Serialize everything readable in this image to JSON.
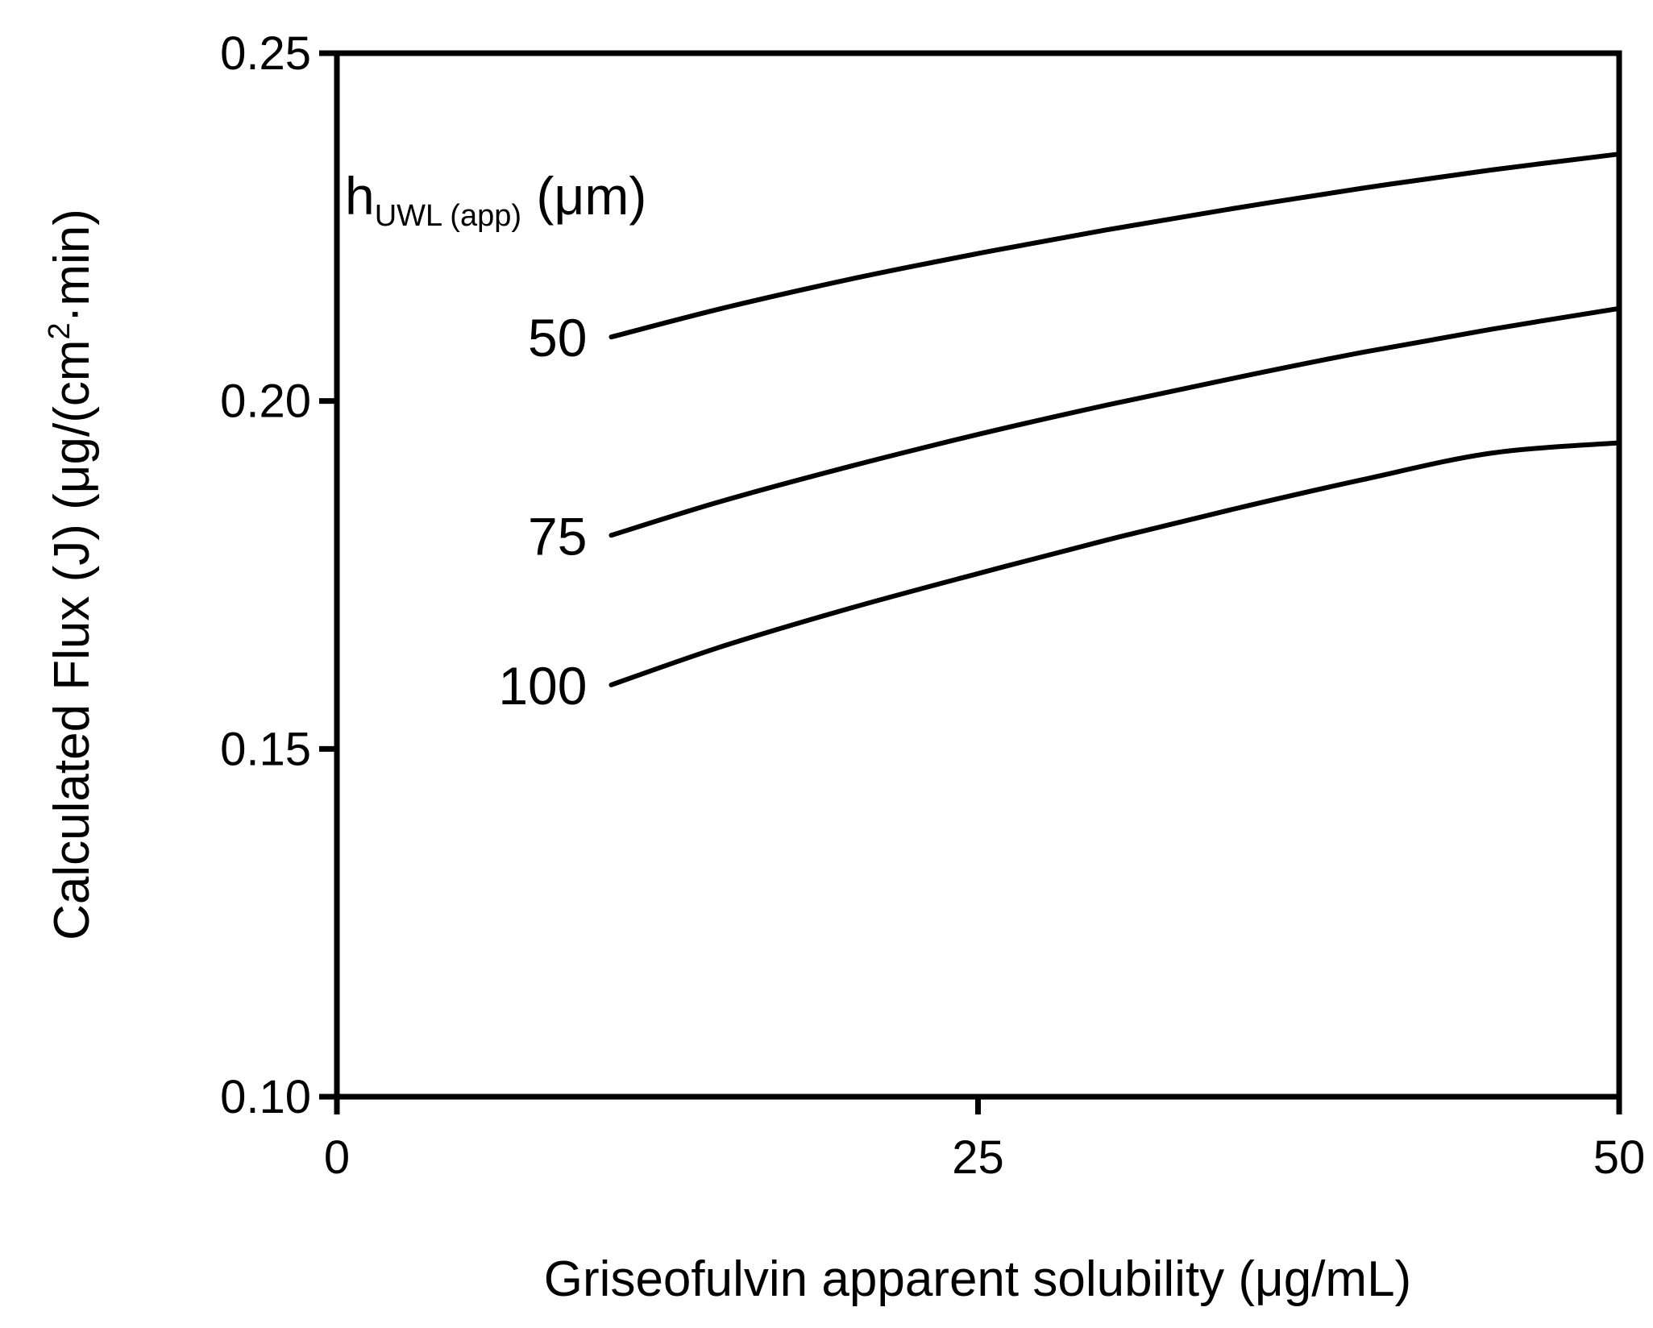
{
  "chart_data": {
    "type": "line",
    "xlabel": "Griseofulvin apparent solubility (μg/mL)",
    "ylabel_main": "Calculated Flux (J) (μg/(cm",
    "ylabel_sup": "2",
    "ylabel_tail": "·min)",
    "xlim": [
      0,
      50
    ],
    "ylim": [
      0.1,
      0.25
    ],
    "x_ticks": [
      0,
      25,
      50
    ],
    "x_tick_labels": [
      "0",
      "25",
      "50"
    ],
    "y_ticks": [
      0.1,
      0.15,
      0.2,
      0.25
    ],
    "y_tick_labels": [
      "0.10",
      "0.15",
      "0.20",
      "0.25"
    ],
    "grid": false,
    "legend": {
      "title_main": "h",
      "title_sub": "UWL (app)",
      "title_unit": " (μm)"
    },
    "series": [
      {
        "name": "50",
        "x": [
          10.7,
          15,
          20,
          25,
          30,
          35,
          40,
          45,
          50
        ],
        "y": [
          0.2092,
          0.2133,
          0.2175,
          0.2212,
          0.2246,
          0.2277,
          0.2306,
          0.2332,
          0.2355
        ]
      },
      {
        "name": "75",
        "x": [
          10.7,
          15,
          20,
          25,
          30,
          35,
          40,
          45,
          50
        ],
        "y": [
          0.1807,
          0.1856,
          0.1906,
          0.1952,
          0.1994,
          0.2033,
          0.207,
          0.2103,
          0.2133
        ]
      },
      {
        "name": "100",
        "x": [
          10.7,
          15,
          20,
          25,
          30,
          35,
          40,
          45,
          50
        ],
        "y": [
          0.1592,
          0.1647,
          0.1702,
          0.1752,
          0.18,
          0.1845,
          0.1887,
          0.1925,
          0.194
        ]
      }
    ]
  }
}
